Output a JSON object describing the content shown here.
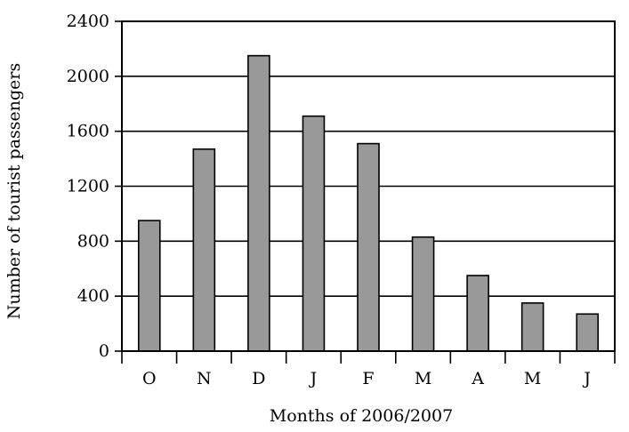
{
  "chart_data": {
    "type": "bar",
    "categories": [
      "O",
      "N",
      "D",
      "J",
      "F",
      "M",
      "A",
      "M",
      "J"
    ],
    "values": [
      950,
      1470,
      2150,
      1710,
      1510,
      830,
      550,
      350,
      270
    ],
    "xlabel": "Months of 2006/2007",
    "ylabel": "Number of tourist passengers",
    "ylim": [
      0,
      2400
    ],
    "yticks": [
      "0",
      "400",
      "800",
      "1200",
      "1600",
      "2000",
      "2400"
    ],
    "grid": "horizontal",
    "bar_color": "#999999",
    "bar_stroke": "#000000"
  }
}
